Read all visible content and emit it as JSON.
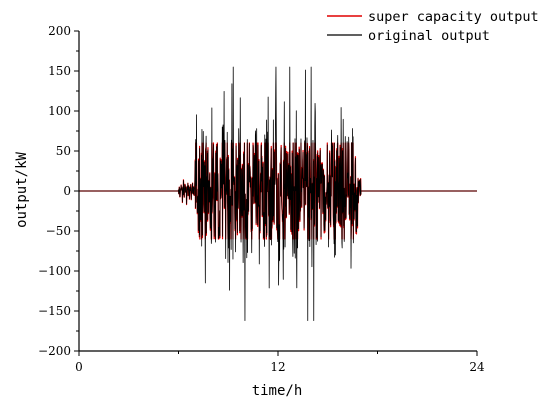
{
  "chart_data": {
    "type": "line",
    "xlabel": "time/h",
    "ylabel": "output/kW",
    "xlim": [
      0,
      24
    ],
    "ylim": [
      -200,
      200
    ],
    "xticks": [
      0,
      12,
      24
    ],
    "yticks": [
      -200,
      -150,
      -100,
      -50,
      0,
      50,
      100,
      150,
      200
    ],
    "grid": false,
    "legend_position": "top-right-outside",
    "active_window": [
      6.0,
      17.0
    ],
    "series": [
      {
        "name": "super capacity output",
        "color": "#e00000",
        "clip": [
          -60,
          60
        ],
        "description_values": [
          [
            0,
            0
          ],
          [
            6.0,
            0
          ],
          [
            17.0,
            0
          ],
          [
            24,
            0
          ]
        ]
      },
      {
        "name": "original output",
        "color": "#000000",
        "min": -162,
        "max": 155
      }
    ]
  }
}
